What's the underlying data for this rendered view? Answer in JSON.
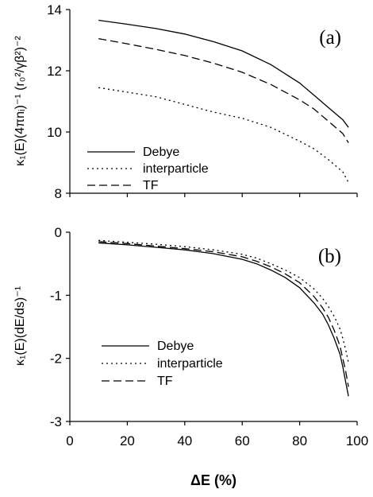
{
  "chart_data": [
    {
      "type": "line",
      "panel_label": "(a)",
      "ylabel": "κ₁(E)(4πnᵢ)⁻¹ (r₀²/γβ²)⁻²",
      "xlim": [
        0,
        100
      ],
      "ylim": [
        8,
        14
      ],
      "y_ticks": [
        "8",
        "10",
        "12",
        "14"
      ],
      "x_ticks": [
        "0",
        "20",
        "40",
        "60",
        "80",
        "100"
      ],
      "legend_position": "bottom-left",
      "x": [
        10,
        20,
        30,
        40,
        50,
        60,
        70,
        80,
        85,
        90,
        95,
        97
      ],
      "series": [
        {
          "name": "Debye",
          "dash": "solid",
          "values": [
            13.65,
            13.52,
            13.38,
            13.2,
            12.95,
            12.65,
            12.2,
            11.6,
            11.2,
            10.8,
            10.4,
            10.15
          ]
        },
        {
          "name": "interparticle",
          "dash": "dotted",
          "values": [
            11.45,
            11.3,
            11.15,
            10.9,
            10.65,
            10.45,
            10.15,
            9.7,
            9.45,
            9.1,
            8.7,
            8.35
          ]
        },
        {
          "name": "TF",
          "dash": "dashed",
          "values": [
            13.05,
            12.88,
            12.7,
            12.5,
            12.25,
            11.95,
            11.55,
            11.05,
            10.75,
            10.35,
            9.95,
            9.65
          ]
        }
      ]
    },
    {
      "type": "line",
      "panel_label": "(b)",
      "ylabel": "κ₁(E)(dE/ds)⁻¹",
      "xlabel": "ΔE (%)",
      "xlim": [
        0,
        100
      ],
      "ylim": [
        -3,
        0
      ],
      "y_ticks": [
        "0",
        "-1",
        "-2",
        "-3"
      ],
      "x_ticks": [
        "0",
        "20",
        "40",
        "60",
        "80",
        "100"
      ],
      "legend_position": "bottom-left",
      "x": [
        10,
        20,
        30,
        40,
        50,
        60,
        65,
        70,
        75,
        80,
        85,
        88,
        90,
        92,
        94,
        95,
        96,
        97
      ],
      "series": [
        {
          "name": "Debye",
          "dash": "solid",
          "values": [
            -0.17,
            -0.2,
            -0.24,
            -0.28,
            -0.34,
            -0.43,
            -0.5,
            -0.6,
            -0.72,
            -0.88,
            -1.12,
            -1.3,
            -1.47,
            -1.68,
            -1.93,
            -2.13,
            -2.37,
            -2.6
          ]
        },
        {
          "name": "interparticle",
          "dash": "dotted",
          "values": [
            -0.13,
            -0.16,
            -0.19,
            -0.23,
            -0.28,
            -0.35,
            -0.41,
            -0.5,
            -0.6,
            -0.72,
            -0.9,
            -1.05,
            -1.18,
            -1.33,
            -1.53,
            -1.68,
            -1.86,
            -2.07
          ]
        },
        {
          "name": "TF",
          "dash": "dashed",
          "values": [
            -0.15,
            -0.18,
            -0.22,
            -0.26,
            -0.31,
            -0.39,
            -0.46,
            -0.55,
            -0.66,
            -0.8,
            -1.02,
            -1.2,
            -1.35,
            -1.55,
            -1.8,
            -2.0,
            -2.2,
            -2.45
          ]
        }
      ]
    }
  ]
}
